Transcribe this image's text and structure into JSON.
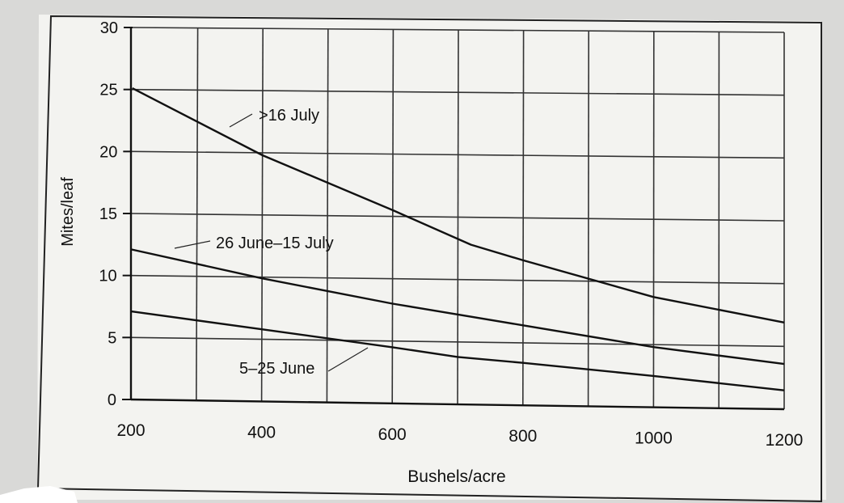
{
  "chart_data": {
    "type": "line",
    "xlabel": "Bushels/acre",
    "ylabel": "Mites/leaf",
    "xlim": [
      200,
      1200
    ],
    "ylim": [
      0,
      30
    ],
    "x_ticks": [
      "200",
      "400",
      "600",
      "800",
      "1000",
      "1200"
    ],
    "y_ticks": [
      "0",
      "5",
      "10",
      "15",
      "20",
      "25",
      "30"
    ],
    "grid": true,
    "series": [
      {
        "name": ">16 July",
        "x": [
          200,
          400,
          600,
          720,
          800,
          1000,
          1200
        ],
        "y": [
          25.1,
          19.8,
          15.5,
          12.8,
          11.6,
          8.8,
          6.9
        ]
      },
      {
        "name": "26 June–15 July",
        "x": [
          200,
          400,
          600,
          800,
          1000,
          1200
        ],
        "y": [
          12.1,
          9.9,
          8.0,
          6.4,
          4.8,
          3.6
        ]
      },
      {
        "name": "5–25 June",
        "x": [
          200,
          400,
          600,
          700,
          800,
          1000,
          1200
        ],
        "y": [
          7.1,
          5.8,
          4.5,
          3.8,
          3.4,
          2.5,
          1.5
        ]
      }
    ]
  }
}
